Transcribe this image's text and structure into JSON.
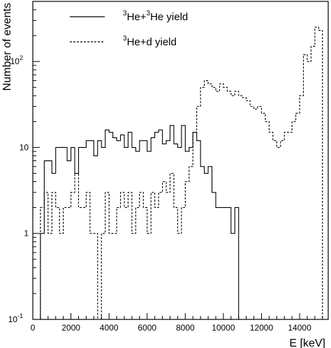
{
  "chart_data": {
    "type": "line",
    "title": "",
    "xlabel": "E [keV]",
    "ylabel": "Number of events",
    "xlim": [
      0,
      15500
    ],
    "ylim": [
      0.1,
      500
    ],
    "y_scale": "log",
    "grid": false,
    "legend_placement": "top-left",
    "x_ticks": [
      0,
      2000,
      4000,
      6000,
      8000,
      10000,
      12000,
      14000
    ],
    "x_tick_labels": [
      "0",
      "2000",
      "4000",
      "6000",
      "8000",
      "10000",
      "12000",
      "14000"
    ],
    "y_ticks": [
      {
        "value": 0.1,
        "base": "10",
        "exp": "-1"
      },
      {
        "value": 1,
        "base": "1",
        "exp": ""
      },
      {
        "value": 10,
        "base": "10",
        "exp": ""
      },
      {
        "value": 100,
        "base": "10",
        "exp": "2"
      }
    ],
    "bin_width": 200,
    "series": [
      {
        "name_parts": {
          "sup1": "3",
          "a": "He+",
          "sup2": "3",
          "b": "He yield"
        },
        "style": "solid",
        "color": "#000000",
        "x_start": 400,
        "values": [
          1,
          7,
          7,
          5,
          10,
          10,
          10,
          7,
          10,
          5,
          10,
          10,
          12,
          12,
          8,
          12,
          10,
          16,
          15,
          13,
          12,
          14,
          10,
          15,
          10,
          9,
          12,
          12,
          9,
          13,
          15,
          16,
          11,
          12,
          18,
          11,
          10,
          18,
          9,
          10,
          15,
          12,
          6,
          5,
          6,
          3,
          2,
          2,
          2,
          2,
          1,
          2
        ],
        "tail_drop_x": 10200
      },
      {
        "name_parts": {
          "sup1": "3",
          "a": "He+d yield",
          "sup2": "",
          "b": ""
        },
        "style": "dashed",
        "color": "#000000",
        "x_start": 400,
        "values": [
          2,
          3,
          1,
          3,
          2,
          1,
          2,
          2,
          3,
          5,
          2,
          2,
          3,
          1,
          1,
          0.1,
          1,
          3,
          1,
          1,
          2,
          3,
          2,
          3,
          1,
          2,
          3,
          2,
          1,
          3,
          2,
          3,
          4,
          3,
          5,
          2,
          1,
          2,
          4,
          6,
          15,
          30,
          50,
          60,
          55,
          50,
          45,
          55,
          50,
          45,
          40,
          45,
          40,
          38,
          35,
          30,
          28,
          30,
          25,
          20,
          15,
          12,
          10,
          12,
          15,
          15,
          20,
          25,
          40,
          120,
          100,
          150,
          250,
          230
        ],
        "tail_drop_x": 14800
      }
    ]
  }
}
